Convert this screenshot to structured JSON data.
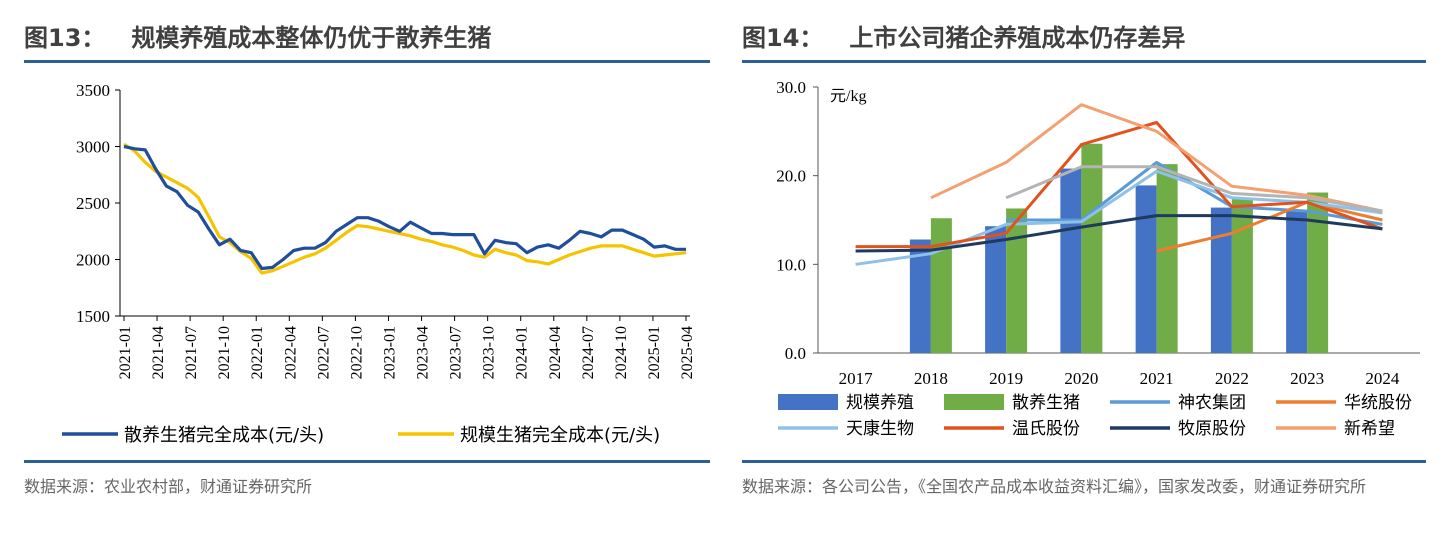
{
  "fig13": {
    "number": "图13：",
    "title": "规模养殖成本整体仍优于散养生猪",
    "source": "数据来源：农业农村部，财通证券研究所",
    "chart_data": {
      "type": "line",
      "ylim": [
        1500,
        3500
      ],
      "yticks": [
        "1500",
        "2000",
        "2500",
        "3000",
        "3500"
      ],
      "xticklabels": [
        "2021-01",
        "2021-04",
        "2021-07",
        "2021-10",
        "2022-01",
        "2022-04",
        "2022-07",
        "2022-10",
        "2023-01",
        "2023-04",
        "2023-07",
        "2023-10",
        "2024-01",
        "2024-04",
        "2024-07",
        "2024-10",
        "2025-01",
        "2025-04"
      ],
      "legend_position": "bottom",
      "series": [
        {
          "name": "散养生猪完全成本(元/头)",
          "color": "#1f4e9c",
          "values": [
            3000,
            2980,
            2970,
            2800,
            2650,
            2600,
            2480,
            2420,
            2270,
            2130,
            2180,
            2080,
            2060,
            1920,
            1930,
            2000,
            2080,
            2100,
            2100,
            2150,
            2250,
            2310,
            2370,
            2370,
            2340,
            2290,
            2250,
            2330,
            2280,
            2230,
            2230,
            2220,
            2220,
            2220,
            2050,
            2170,
            2150,
            2140,
            2060,
            2110,
            2130,
            2100,
            2170,
            2250,
            2230,
            2200,
            2260,
            2260,
            2220,
            2180,
            2110,
            2120,
            2090,
            2090
          ]
        },
        {
          "name": "规模生猪完全成本(元/头)",
          "color": "#f5c400",
          "values": [
            3020,
            2960,
            2860,
            2780,
            2730,
            2680,
            2630,
            2550,
            2380,
            2200,
            2150,
            2070,
            2010,
            1880,
            1900,
            1940,
            1980,
            2020,
            2050,
            2100,
            2170,
            2240,
            2300,
            2290,
            2270,
            2250,
            2230,
            2210,
            2180,
            2160,
            2130,
            2110,
            2080,
            2040,
            2020,
            2090,
            2060,
            2040,
            1990,
            1980,
            1960,
            2000,
            2040,
            2070,
            2100,
            2120,
            2120,
            2120,
            2090,
            2060,
            2030,
            2040,
            2050,
            2060
          ]
        }
      ]
    }
  },
  "fig14": {
    "number": "图14：",
    "title": "上市公司猪企养殖成本仍存差异",
    "source": "数据来源：各公司公告，《全国农产品成本收益资料汇编》，国家发改委，财通证券研究所",
    "chart_data": {
      "type": "bar",
      "unit": "元/kg",
      "ylim": [
        0,
        30
      ],
      "yticks": [
        "0.0",
        "10.0",
        "20.0",
        "30.0"
      ],
      "categories": [
        "2017",
        "2018",
        "2019",
        "2020",
        "2021",
        "2022",
        "2023",
        "2024"
      ],
      "legend_position": "bottom",
      "series": [
        {
          "name": "规模养殖",
          "kind": "bar",
          "color": "#4472c4",
          "values": [
            null,
            12.8,
            14.3,
            20.8,
            18.9,
            16.4,
            16.1,
            null
          ]
        },
        {
          "name": "散养生猪",
          "kind": "bar",
          "color": "#70ad47",
          "values": [
            null,
            15.2,
            16.3,
            23.6,
            21.3,
            17.5,
            18.1,
            null
          ]
        },
        {
          "name": "神农集团",
          "kind": "line",
          "color": "#5b9bd5",
          "values": [
            null,
            null,
            15.0,
            15.0,
            21.5,
            16.5,
            16.0,
            14.5
          ]
        },
        {
          "name": "华统股份",
          "kind": "line",
          "color": "#ed7d31",
          "values": [
            null,
            null,
            null,
            null,
            11.5,
            13.5,
            17.0,
            15.0
          ]
        },
        {
          "name": "天康生物",
          "kind": "line",
          "color": "#8fc0e8",
          "values": [
            10.0,
            11.2,
            14.5,
            14.8,
            20.5,
            17.5,
            17.0,
            15.8
          ]
        },
        {
          "name": "温氏股份",
          "kind": "line",
          "color": "#e0531f",
          "values": [
            12.0,
            12.0,
            13.5,
            23.5,
            26.0,
            16.5,
            17.0,
            14.0
          ]
        },
        {
          "name": "牧原股份",
          "kind": "line",
          "color": "#1f3a5f",
          "values": [
            11.5,
            11.6,
            12.8,
            14.2,
            15.5,
            15.5,
            15.0,
            14.0
          ]
        },
        {
          "name": "新希望",
          "kind": "line",
          "color": "#f4a070",
          "values": [
            null,
            17.5,
            21.5,
            28.0,
            25.0,
            18.8,
            17.8,
            16.0
          ]
        },
        {
          "name": "",
          "kind": "line",
          "color": "#b4b4b4",
          "values": [
            null,
            null,
            17.5,
            21.0,
            21.0,
            18.0,
            17.5,
            16.0
          ]
        }
      ]
    }
  }
}
